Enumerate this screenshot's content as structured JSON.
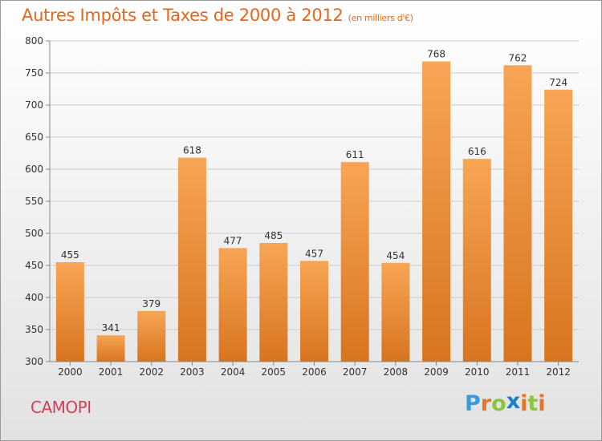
{
  "header": {
    "title": "Autres Impôts et Taxes de 2000 à 2012",
    "subtitle": "(en milliers d'€)"
  },
  "footer": {
    "commune": "CAMOPI",
    "logo_letters": [
      "P",
      "r",
      "o",
      "x",
      "i",
      "t",
      "i"
    ],
    "logo_colors": [
      "#3a9ad9",
      "#e8742a",
      "#8cc63f",
      "#1e7fc4",
      "#e8742a",
      "#8cc63f",
      "#e8742a"
    ]
  },
  "colors": {
    "bar_top": "#f7a555",
    "bar_bottom": "#d8741e",
    "grid": "#cccccc",
    "axis": "#888888"
  },
  "chart_data": {
    "type": "bar",
    "categories": [
      "2000",
      "2001",
      "2002",
      "2003",
      "2004",
      "2005",
      "2006",
      "2007",
      "2008",
      "2009",
      "2010",
      "2011",
      "2012"
    ],
    "values": [
      455,
      341,
      379,
      618,
      477,
      485,
      457,
      611,
      454,
      768,
      616,
      762,
      724
    ],
    "yticks": [
      300,
      350,
      400,
      450,
      500,
      550,
      600,
      650,
      700,
      750,
      800
    ],
    "ylim": [
      300,
      800
    ],
    "grid": true
  }
}
